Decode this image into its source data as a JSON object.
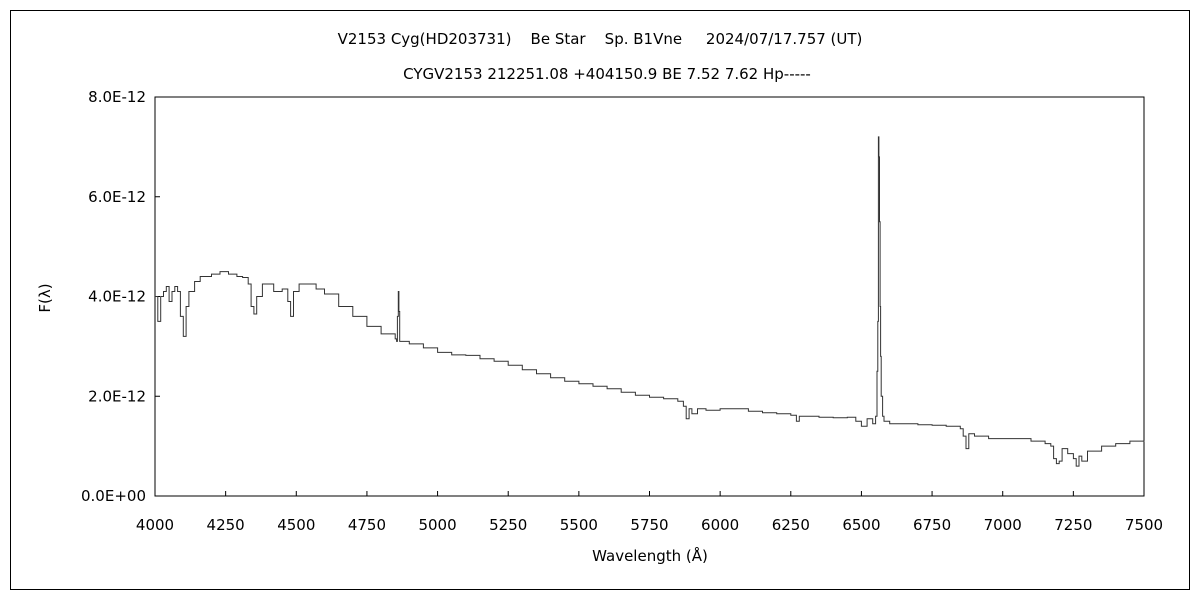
{
  "chart_data": {
    "type": "line",
    "title": "V2153 Cyg(HD203731)    Be Star    Sp. B1Vne     2024/07/17.757 (UT)",
    "subtitle": "CYGV2153 212251.08 +404150.9 BE 7.52 7.62 Hp-----",
    "xlabel": "Wavelength (Å)",
    "ylabel": "F(λ)",
    "xlim": [
      4000,
      7500
    ],
    "ylim": [
      0,
      8e-12
    ],
    "x_ticks": [
      4000,
      4250,
      4500,
      4750,
      5000,
      5250,
      5500,
      5750,
      6000,
      6250,
      6500,
      6750,
      7000,
      7250,
      7500
    ],
    "x_tick_labels": [
      "4000",
      "4250",
      "4500",
      "4750",
      "5000",
      "5250",
      "5500",
      "5750",
      "6000",
      "6250",
      "6500",
      "6750",
      "7000",
      "7250",
      "7500"
    ],
    "y_ticks": [
      0,
      2e-12,
      4e-12,
      6e-12,
      8e-12
    ],
    "y_tick_labels": [
      "0.0E+00",
      "2.0E-12",
      "4.0E-12",
      "6.0E-12",
      "8.0E-12"
    ],
    "grid": false,
    "colors": {
      "line": "#333333",
      "frame": "#000000"
    },
    "series": [
      {
        "x": [
          4000,
          4010,
          4020,
          4030,
          4040,
          4050,
          4060,
          4070,
          4080,
          4090,
          4100,
          4110,
          4120,
          4140,
          4160,
          4180,
          4200,
          4230,
          4260,
          4290,
          4310,
          4330,
          4340,
          4350,
          4360,
          4380,
          4400,
          4420,
          4450,
          4470,
          4480,
          4490,
          4510,
          4540,
          4570,
          4600,
          4650,
          4700,
          4750,
          4800,
          4850,
          4855,
          4858,
          4861,
          4863,
          4866,
          4870,
          4900,
          4950,
          5000,
          5050,
          5100,
          5150,
          5200,
          5250,
          5300,
          5350,
          5400,
          5450,
          5500,
          5550,
          5600,
          5650,
          5700,
          5750,
          5800,
          5850,
          5870,
          5880,
          5890,
          5900,
          5920,
          5950,
          6000,
          6050,
          6100,
          6150,
          6200,
          6250,
          6270,
          6280,
          6300,
          6350,
          6400,
          6450,
          6480,
          6500,
          6520,
          6540,
          6550,
          6555,
          6558,
          6560,
          6562,
          6564,
          6566,
          6568,
          6570,
          6575,
          6580,
          6600,
          6650,
          6700,
          6750,
          6800,
          6850,
          6860,
          6870,
          6880,
          6900,
          6950,
          7000,
          7050,
          7100,
          7150,
          7170,
          7180,
          7190,
          7200,
          7210,
          7230,
          7250,
          7260,
          7270,
          7280,
          7300,
          7350,
          7400,
          7450,
          7500
        ],
        "y": [
          4e-12,
          3.5e-12,
          4e-12,
          4.1e-12,
          4.2e-12,
          3.9e-12,
          4.1e-12,
          4.2e-12,
          4.1e-12,
          3.6e-12,
          3.2e-12,
          3.8e-12,
          4.1e-12,
          4.3e-12,
          4.4e-12,
          4.4e-12,
          4.45e-12,
          4.5e-12,
          4.45e-12,
          4.4e-12,
          4.38e-12,
          4.25e-12,
          3.8e-12,
          3.65e-12,
          4e-12,
          4.25e-12,
          4.25e-12,
          4.1e-12,
          4.15e-12,
          3.9e-12,
          3.6e-12,
          4.1e-12,
          4.25e-12,
          4.25e-12,
          4.15e-12,
          4.05e-12,
          3.8e-12,
          3.6e-12,
          3.4e-12,
          3.25e-12,
          3.15e-12,
          3.1e-12,
          3.6e-12,
          4.1e-12,
          3.7e-12,
          3.1e-12,
          3.1e-12,
          3.05e-12,
          2.97e-12,
          2.88e-12,
          2.83e-12,
          2.82e-12,
          2.75e-12,
          2.7e-12,
          2.62e-12,
          2.53e-12,
          2.45e-12,
          2.37e-12,
          2.3e-12,
          2.25e-12,
          2.2e-12,
          2.15e-12,
          2.08e-12,
          2.02e-12,
          1.98e-12,
          1.95e-12,
          1.9e-12,
          1.8e-12,
          1.55e-12,
          1.75e-12,
          1.65e-12,
          1.75e-12,
          1.72e-12,
          1.75e-12,
          1.75e-12,
          1.7e-12,
          1.67e-12,
          1.65e-12,
          1.62e-12,
          1.5e-12,
          1.6e-12,
          1.6e-12,
          1.58e-12,
          1.57e-12,
          1.58e-12,
          1.5e-12,
          1.4e-12,
          1.55e-12,
          1.45e-12,
          1.6e-12,
          2.5e-12,
          3.5e-12,
          7.2e-12,
          6.8e-12,
          5.5e-12,
          3.8e-12,
          2.8e-12,
          2e-12,
          1.6e-12,
          1.5e-12,
          1.45e-12,
          1.45e-12,
          1.43e-12,
          1.42e-12,
          1.4e-12,
          1.35e-12,
          1.2e-12,
          9.5e-13,
          1.25e-12,
          1.2e-12,
          1.15e-12,
          1.15e-12,
          1.15e-12,
          1.1e-12,
          1.05e-12,
          1e-12,
          7.5e-13,
          6.5e-13,
          7e-13,
          9.5e-13,
          8.5e-13,
          7.5e-13,
          6e-13,
          8e-13,
          7e-13,
          9e-13,
          1e-12,
          1.05e-12,
          1.1e-12,
          1.08e-12
        ]
      }
    ]
  }
}
